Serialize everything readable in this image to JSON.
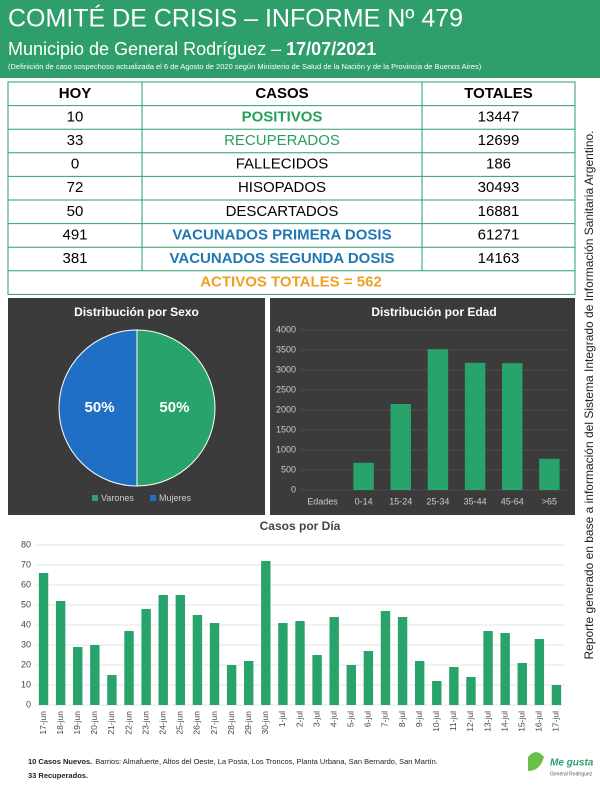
{
  "header": {
    "title": "COMITÉ DE CRISIS – INFORME Nº 479",
    "subtitle": "Municipio de General Rodríguez –",
    "date": "17/07/2021",
    "note": "(Definición de caso sospechoso actualizada el 6 de Agosto de 2020 según Ministerio de Salud de la Nación y de la Provincia de Buenos Aires)"
  },
  "table": {
    "columns": [
      "HOY",
      "CASOS",
      "TOTALES"
    ],
    "rows": [
      {
        "hoy": 10,
        "casos": "POSITIVOS",
        "totales": 13447,
        "color": "#27a05a",
        "bold": true
      },
      {
        "hoy": 33,
        "casos": "RECUPERADOS",
        "totales": 12699,
        "color": "#27a05a",
        "bold": false
      },
      {
        "hoy": 0,
        "casos": "FALLECIDOS",
        "totales": 186,
        "color": "#000000",
        "bold": false
      },
      {
        "hoy": 72,
        "casos": "HISOPADOS",
        "totales": 30493,
        "color": "#000000",
        "bold": false
      },
      {
        "hoy": 50,
        "casos": "DESCARTADOS",
        "totales": 16881,
        "color": "#000000",
        "bold": false
      },
      {
        "hoy": 491,
        "casos": "VACUNADOS PRIMERA DOSIS",
        "totales": 61271,
        "color": "#1f78b4",
        "bold": true
      },
      {
        "hoy": 381,
        "casos": "VACUNADOS SEGUNDA DOSIS",
        "totales": 14163,
        "color": "#1f78b4",
        "bold": true
      }
    ],
    "total": {
      "text": "ACTIVOS TOTALES = 562",
      "color": "#f0a020"
    }
  },
  "side_note": "Reporte generado en base a información del Sistema Integrado de Información Sanitaria Argentino.",
  "chart_data": [
    {
      "type": "pie",
      "title": "Distribución por Sexo",
      "categories": [
        "Varones",
        "Mujeres"
      ],
      "values": [
        50,
        50
      ],
      "value_labels": [
        "50%",
        "50%"
      ],
      "colors": [
        "#28a36b",
        "#1f6fc4"
      ],
      "legend": "bottom"
    },
    {
      "type": "bar",
      "title": "Distribución por Edad",
      "xlabel": "Edades",
      "categories": [
        "0-14",
        "15-24",
        "25-34",
        "35-44",
        "45-64",
        ">65"
      ],
      "values": [
        680,
        2150,
        3520,
        3180,
        3170,
        780
      ],
      "color": "#28a36b",
      "ylim": [
        0,
        4000
      ],
      "yticks": [
        0,
        500,
        1000,
        1500,
        2000,
        2500,
        3000,
        3500,
        4000
      ],
      "grid": true
    },
    {
      "type": "bar",
      "title": "Casos por Día",
      "categories": [
        "17-jun",
        "18-jun",
        "19-jun",
        "20-jun",
        "21-jun",
        "22-jun",
        "23-jun",
        "24-jun",
        "25-jun",
        "26-jun",
        "27-jun",
        "28-jun",
        "29-jun",
        "30-jun",
        "1-jul",
        "2-jul",
        "3-jul",
        "4-jul",
        "5-jul",
        "6-jul",
        "7-jul",
        "8-jul",
        "9-jul",
        "10-jul",
        "11-jul",
        "12-jul",
        "13-jul",
        "14-jul",
        "15-jul",
        "16-jul",
        "17-jul"
      ],
      "values": [
        66,
        52,
        29,
        30,
        15,
        37,
        48,
        55,
        55,
        45,
        41,
        20,
        22,
        72,
        41,
        42,
        25,
        44,
        20,
        27,
        47,
        44,
        22,
        12,
        19,
        14,
        37,
        36,
        21,
        33,
        10
      ],
      "color": "#28a36b",
      "ylim": [
        0,
        80
      ],
      "yticks": [
        0,
        10,
        20,
        30,
        40,
        50,
        60,
        70,
        80
      ],
      "grid": true
    }
  ],
  "footer": {
    "new_cases": "10 Casos Nuevos.",
    "barrios": "Barrios: Almafuerte, Altos del Oeste, La Posta, Los Troncos, Planta Urbana, San Bernardo, San Martín.",
    "recovered": "33 Recuperados.",
    "logo": "Me gusta",
    "logo_sub": "General Rodríguez"
  }
}
